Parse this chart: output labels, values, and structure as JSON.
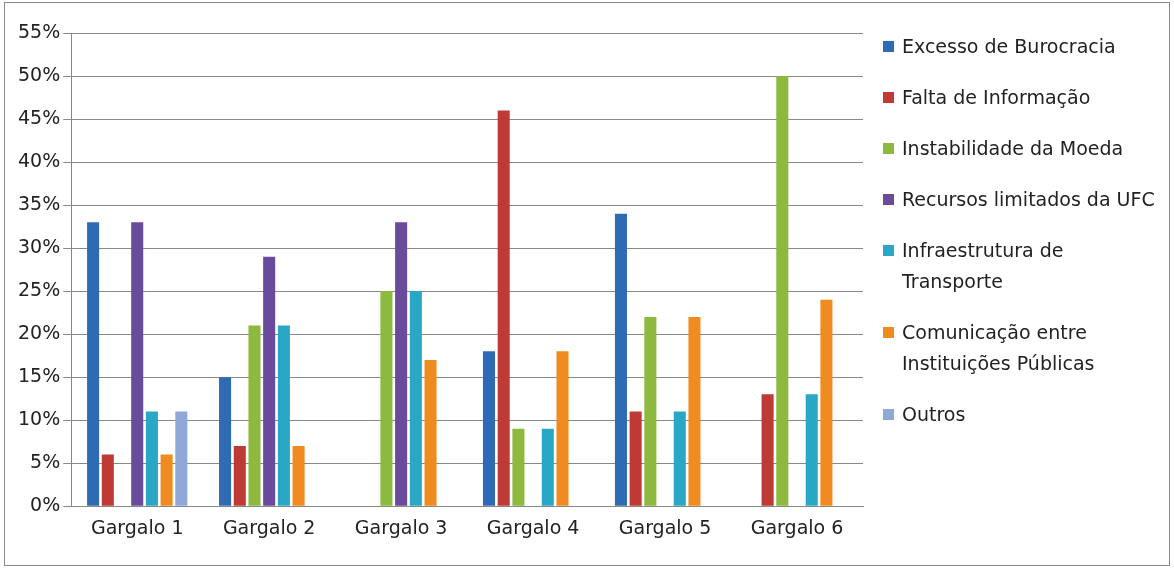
{
  "chart_data": {
    "type": "bar",
    "categories": [
      "Gargalo 1",
      "Gargalo 2",
      "Gargalo 3",
      "Gargalo 4",
      "Gargalo 5",
      "Gargalo 6"
    ],
    "series": [
      {
        "name": "Excesso de Burocracia",
        "color": "#2e6bb5",
        "values": [
          33,
          15,
          null,
          18,
          34,
          null
        ]
      },
      {
        "name": "Falta de Informação",
        "color": "#be3a35",
        "values": [
          6,
          7,
          null,
          46,
          11,
          13
        ]
      },
      {
        "name": "Instabilidade da Moeda",
        "color": "#8db93f",
        "values": [
          null,
          21,
          25,
          9,
          22,
          50
        ]
      },
      {
        "name": "Recursos limitados da UFC",
        "color": "#6a4a9a",
        "values": [
          33,
          29,
          33,
          null,
          null,
          null
        ]
      },
      {
        "name": "Infraestrutura de Transporte",
        "color": "#2aa7c4",
        "values": [
          11,
          21,
          25,
          9,
          11,
          13
        ]
      },
      {
        "name": "Comunicação entre Instituições Públicas",
        "color": "#f08c1f",
        "values": [
          6,
          7,
          17,
          18,
          22,
          24
        ]
      },
      {
        "name": "Outros",
        "color": "#8fa8d8",
        "values": [
          11,
          null,
          null,
          null,
          null,
          null
        ]
      }
    ],
    "ylim": [
      0,
      55
    ],
    "yticks": [
      {
        "value": 0,
        "label": "0%"
      },
      {
        "value": 5,
        "label": "5%"
      },
      {
        "value": 10,
        "label": "10%"
      },
      {
        "value": 15,
        "label": "15%"
      },
      {
        "value": 20,
        "label": "20%"
      },
      {
        "value": 25,
        "label": "25%"
      },
      {
        "value": 30,
        "label": "30%"
      },
      {
        "value": 35,
        "label": "35%"
      },
      {
        "value": 40,
        "label": "40%"
      },
      {
        "value": 45,
        "label": "45%"
      },
      {
        "value": 50,
        "label": "50%"
      },
      {
        "value": 55,
        "label": "55%"
      }
    ],
    "grid": "y",
    "legend": "right"
  }
}
